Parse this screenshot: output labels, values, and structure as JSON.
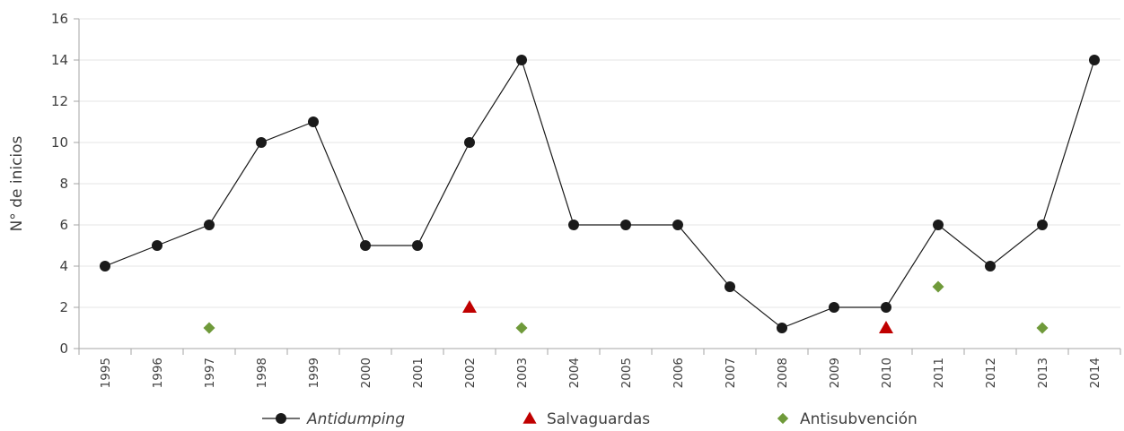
{
  "chart_data": {
    "type": "line",
    "title": "",
    "xlabel": "",
    "ylabel": "N° de inicios",
    "ylim": [
      0,
      16
    ],
    "yticks": [
      0,
      2,
      4,
      6,
      8,
      10,
      12,
      14,
      16
    ],
    "grid": true,
    "legend_position": "bottom",
    "categories": [
      "1995",
      "1996",
      "1997",
      "1998",
      "1999",
      "2000",
      "2001",
      "2002",
      "2003",
      "2004",
      "2005",
      "2006",
      "2007",
      "2008",
      "2009",
      "2010",
      "2011",
      "2012",
      "2013",
      "2014"
    ],
    "series": [
      {
        "name": "Antidumping",
        "marker": "circle",
        "line": true,
        "italic": true,
        "color": "#1a1a1a",
        "values": [
          4,
          5,
          6,
          10,
          11,
          5,
          5,
          10,
          14,
          6,
          6,
          6,
          3,
          1,
          2,
          2,
          6,
          4,
          6,
          14
        ]
      },
      {
        "name": "Salvaguardas",
        "marker": "triangle",
        "line": false,
        "italic": false,
        "color": "#c00000",
        "values": [
          null,
          null,
          null,
          null,
          null,
          null,
          null,
          2,
          null,
          null,
          null,
          null,
          null,
          null,
          null,
          1,
          null,
          null,
          null,
          null
        ]
      },
      {
        "name": "Antisubvención",
        "marker": "diamond",
        "line": false,
        "italic": false,
        "color": "#6f9a3a",
        "values": [
          null,
          null,
          1,
          null,
          null,
          null,
          null,
          null,
          1,
          null,
          null,
          null,
          null,
          null,
          null,
          null,
          3,
          null,
          1,
          null
        ]
      }
    ]
  }
}
